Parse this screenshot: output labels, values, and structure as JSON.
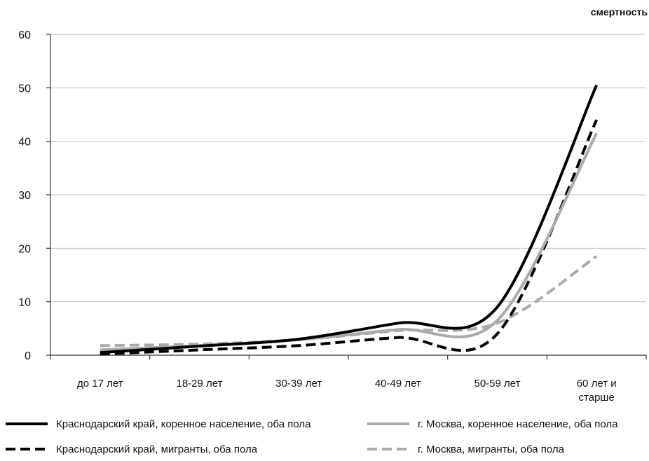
{
  "chart_data": {
    "type": "line",
    "unit_label": "смертность",
    "title": "",
    "xlabel": "",
    "ylabel": "",
    "categories": [
      "до 17 лет",
      "18-29 лет",
      "30-39 лет",
      "40-49 лет",
      "50-59 лет",
      "60 лет и старше"
    ],
    "ylim": [
      0,
      60
    ],
    "yticks": [
      0,
      10,
      20,
      30,
      40,
      50,
      60
    ],
    "grid": true,
    "legend_position": "bottom",
    "series": [
      {
        "name": "Краснодарский край, коренное население, оба пола",
        "values": [
          0.5,
          1.7,
          3.0,
          6.0,
          9.0,
          50.5
        ],
        "color": "#000000",
        "dash": "solid"
      },
      {
        "name": "Краснодарский край, мигранты, оба пола",
        "values": [
          0.2,
          1.0,
          1.8,
          3.3,
          4.0,
          44.0
        ],
        "color": "#000000",
        "dash": "dashed"
      },
      {
        "name": "г. Москва, коренное население, оба пола",
        "values": [
          1.0,
          1.8,
          2.9,
          4.8,
          6.5,
          41.5
        ],
        "color": "#aaaaaa",
        "dash": "solid"
      },
      {
        "name": "г. Москва, мигранты, оба пола",
        "values": [
          1.8,
          2.1,
          2.9,
          4.6,
          6.0,
          18.5
        ],
        "color": "#aaaaaa",
        "dash": "dashed"
      }
    ]
  }
}
